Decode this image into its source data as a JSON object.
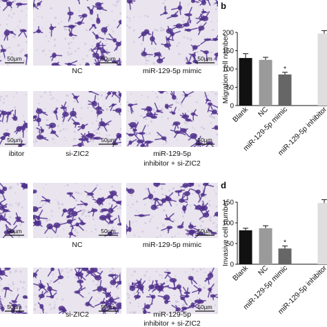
{
  "images": {
    "rows": [
      {
        "cells": [
          {
            "scale_bar": "50µm"
          },
          {
            "caption": [
              "NC"
            ],
            "scale_bar": "50µm"
          },
          {
            "caption": [
              "miR-129-5p mimic"
            ],
            "scale_bar": "50µm"
          }
        ]
      },
      {
        "cells": [
          {
            "caption": [
              "ibitor"
            ],
            "scale_bar": "50µm"
          },
          {
            "caption": [
              "si-ZIC2"
            ],
            "scale_bar": "50µm"
          },
          {
            "caption": [
              "miR-129-5p",
              "inhibitor + si-ZIC2"
            ],
            "scale_bar": "50µm"
          }
        ]
      },
      {
        "cells": [
          {
            "scale_bar": "50µm"
          },
          {
            "caption": [
              "NC"
            ],
            "scale_bar": "50µm"
          },
          {
            "caption": [
              "miR-129-5p mimic"
            ],
            "scale_bar": "50µm"
          }
        ]
      },
      {
        "cells": [
          {
            "scale_bar": "50µm"
          },
          {
            "caption": [
              "si-ZIC2"
            ],
            "scale_bar": "50µm"
          },
          {
            "caption": [
              "miR-129-5p",
              "inhibitor + si-ZIC2"
            ],
            "scale_bar": "50µm"
          }
        ]
      }
    ]
  },
  "chart_data": [
    {
      "type": "bar",
      "panel_label": "b",
      "y_label": "Migration cell number",
      "categories": [
        "Blank",
        "NC",
        "miR-129-5p mimic",
        "miR-129-5p inhibitor"
      ],
      "values": [
        130,
        125,
        85,
        197
      ],
      "errors": [
        12,
        7,
        6,
        8
      ],
      "colors": [
        "#111111",
        "#9a9a9a",
        "#666666",
        "#dedede"
      ],
      "annotations": [
        {
          "index": 2,
          "text": "*"
        }
      ],
      "ylim": [
        0,
        200
      ],
      "yticks": [
        0,
        50,
        100,
        150,
        200
      ]
    },
    {
      "type": "bar",
      "panel_label": "d",
      "y_label": "Invasive cell number",
      "categories": [
        "Blank",
        "NC",
        "miR-129-5p mimic",
        "miR-129-5p inhibitor"
      ],
      "values": [
        82,
        87,
        38,
        148
      ],
      "errors": [
        5,
        6,
        6,
        8
      ],
      "colors": [
        "#111111",
        "#9a9a9a",
        "#666666",
        "#dedede"
      ],
      "annotations": [
        {
          "index": 2,
          "text": "*"
        }
      ],
      "ylim": [
        0,
        150
      ],
      "yticks": [
        0,
        50,
        100,
        150
      ]
    }
  ]
}
